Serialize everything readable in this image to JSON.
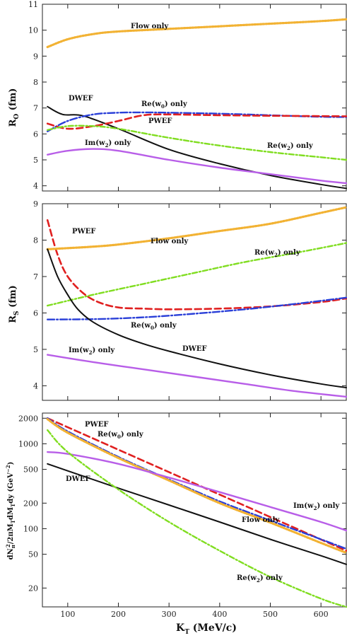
{
  "colors": {
    "flow": "#f2b233",
    "pwef": "#e02020",
    "re_w0": "#2a3fd8",
    "re_w2": "#80dd20",
    "im_w2": "#b85ee8",
    "dwef": "#111111"
  },
  "chart_data": [
    {
      "type": "line",
      "ylabel": "R_O (fm)",
      "xlim": [
        50,
        650
      ],
      "ylim": [
        3.8,
        11
      ],
      "yscale": "linear",
      "yticks": [
        4,
        5,
        6,
        7,
        8,
        9,
        10,
        11
      ],
      "series": [
        {
          "name": "Flow only",
          "style": "flow",
          "x": [
            60,
            100,
            150,
            200,
            300,
            400,
            500,
            600,
            650
          ],
          "y": [
            9.35,
            9.65,
            9.85,
            9.95,
            10.05,
            10.15,
            10.25,
            10.35,
            10.42
          ]
        },
        {
          "name": "DWEF",
          "style": "dwef",
          "x": [
            60,
            90,
            130,
            200,
            300,
            400,
            500,
            600,
            650
          ],
          "y": [
            7.05,
            6.75,
            6.7,
            6.2,
            5.4,
            4.85,
            4.4,
            4.05,
            3.9
          ]
        },
        {
          "name": "Re(w0) only",
          "style": "re_w0",
          "x": [
            60,
            100,
            150,
            200,
            250,
            300,
            400,
            500,
            600,
            650
          ],
          "y": [
            6.1,
            6.5,
            6.75,
            6.82,
            6.83,
            6.82,
            6.78,
            6.72,
            6.66,
            6.65
          ]
        },
        {
          "name": "PWEF",
          "style": "pwef",
          "x": [
            60,
            100,
            150,
            200,
            250,
            300,
            400,
            500,
            650
          ],
          "y": [
            6.4,
            6.2,
            6.3,
            6.5,
            6.72,
            6.75,
            6.72,
            6.7,
            6.68
          ]
        },
        {
          "name": "Re(w2) only",
          "style": "re_w2",
          "x": [
            60,
            100,
            150,
            200,
            300,
            400,
            500,
            600,
            650
          ],
          "y": [
            6.15,
            6.3,
            6.3,
            6.2,
            5.85,
            5.55,
            5.3,
            5.1,
            5.0
          ]
        },
        {
          "name": "Im(w2) only",
          "style": "im_w2",
          "x": [
            60,
            100,
            150,
            200,
            300,
            400,
            500,
            600,
            650
          ],
          "y": [
            5.2,
            5.35,
            5.42,
            5.35,
            5.0,
            4.7,
            4.45,
            4.2,
            4.1
          ]
        }
      ],
      "annotations": [
        "Flow only",
        "DWEF",
        "Re(w0) only",
        "PWEF",
        "Im(w2) only",
        "Re(w2) only"
      ]
    },
    {
      "type": "line",
      "ylabel": "R_S (fm)",
      "xlim": [
        50,
        650
      ],
      "ylim": [
        3.6,
        9
      ],
      "yscale": "linear",
      "yticks": [
        4,
        5,
        6,
        7,
        8,
        9
      ],
      "series": [
        {
          "name": "PWEF",
          "style": "pwef",
          "x": [
            60,
            80,
            100,
            130,
            160,
            200,
            250,
            300,
            400,
            500,
            600,
            650
          ],
          "y": [
            8.55,
            7.6,
            7.0,
            6.55,
            6.3,
            6.15,
            6.12,
            6.1,
            6.12,
            6.18,
            6.3,
            6.4
          ]
        },
        {
          "name": "Flow only",
          "style": "flow",
          "x": [
            60,
            100,
            150,
            200,
            300,
            400,
            500,
            600,
            650
          ],
          "y": [
            7.75,
            7.78,
            7.82,
            7.88,
            8.05,
            8.25,
            8.45,
            8.75,
            8.9
          ]
        },
        {
          "name": "Re(w2) only",
          "style": "re_w2",
          "x": [
            60,
            150,
            250,
            350,
            450,
            550,
            650
          ],
          "y": [
            6.2,
            6.5,
            6.8,
            7.1,
            7.4,
            7.65,
            7.92
          ]
        },
        {
          "name": "Re(w0) only",
          "style": "re_w0",
          "x": [
            60,
            150,
            250,
            350,
            450,
            550,
            650
          ],
          "y": [
            5.82,
            5.83,
            5.88,
            5.98,
            6.1,
            6.25,
            6.42
          ]
        },
        {
          "name": "DWEF",
          "style": "dwef",
          "x": [
            60,
            80,
            100,
            120,
            150,
            200,
            250,
            300,
            400,
            500,
            600,
            650
          ],
          "y": [
            7.75,
            7.0,
            6.5,
            6.1,
            5.75,
            5.4,
            5.15,
            4.95,
            4.6,
            4.3,
            4.05,
            3.95
          ]
        },
        {
          "name": "Im(w2) only",
          "style": "im_w2",
          "x": [
            60,
            150,
            250,
            350,
            450,
            550,
            650
          ],
          "y": [
            4.85,
            4.65,
            4.45,
            4.25,
            4.05,
            3.85,
            3.7
          ]
        }
      ],
      "annotations": [
        "PWEF",
        "Flow only",
        "Re(w2) only",
        "Re(w0) only",
        "DWEF",
        "Im(w2) only"
      ]
    },
    {
      "type": "line",
      "ylabel": "dN_π²/2πM_T dM_T dy (GeV⁻²)",
      "xlabel": "K_T (MeV/c)",
      "xlim": [
        50,
        650
      ],
      "ylim": [
        12,
        2300
      ],
      "yscale": "log",
      "yticks": [
        20,
        50,
        100,
        200,
        500,
        1000,
        2000
      ],
      "xticks": [
        100,
        200,
        300,
        400,
        500,
        600
      ],
      "series": [
        {
          "name": "PWEF",
          "style": "pwef",
          "x": [
            60,
            650
          ],
          "y": [
            2000,
            55
          ]
        },
        {
          "name": "Re(w0) only",
          "style": "re_w0",
          "x": [
            60,
            100,
            200,
            300,
            400,
            500,
            600,
            650
          ],
          "y": [
            2000,
            1400,
            700,
            380,
            210,
            125,
            75,
            58
          ]
        },
        {
          "name": "Flow only",
          "style": "flow",
          "x": [
            60,
            100,
            200,
            300,
            400,
            500,
            600,
            650
          ],
          "y": [
            1950,
            1350,
            680,
            370,
            200,
            118,
            68,
            52
          ]
        },
        {
          "name": "Im(w2) only",
          "style": "im_w2",
          "x": [
            60,
            100,
            200,
            300,
            400,
            500,
            600,
            650
          ],
          "y": [
            800,
            760,
            580,
            400,
            270,
            180,
            120,
            95
          ]
        },
        {
          "name": "DWEF",
          "style": "dwef",
          "x": [
            60,
            100,
            200,
            300,
            400,
            500,
            600,
            650
          ],
          "y": [
            580,
            480,
            300,
            190,
            120,
            75,
            48,
            38
          ]
        },
        {
          "name": "Re(w2) only",
          "style": "re_w2",
          "x": [
            60,
            100,
            200,
            300,
            400,
            500,
            600,
            650
          ],
          "y": [
            1450,
            800,
            290,
            120,
            55,
            27,
            15,
            12
          ]
        }
      ],
      "annotations": [
        "PWEF",
        "Re(w0) only",
        "DWEF",
        "Im(w2) only",
        "Flow only",
        "Re(w2) only"
      ]
    }
  ],
  "text": {
    "p1": {
      "ylabel_main": "R",
      "ylabel_sub": "O",
      "ylabel_unit": " (fm)",
      "flow": "Flow only",
      "dwef": "DWEF",
      "pwef": "PWEF",
      "rew0_a": "Re(w",
      "rew0_s": "0",
      "rew0_b": ") only",
      "rew2_a": "Re(w",
      "rew2_s": "2",
      "rew2_b": ") only",
      "imw2_a": "Im(w",
      "imw2_s": "2",
      "imw2_b": ") only"
    },
    "p2": {
      "ylabel_main": "R",
      "ylabel_sub": "S",
      "ylabel_unit": " (fm)",
      "flow": "Flow only",
      "dwef": "DWEF",
      "pwef": "PWEF",
      "rew0_a": "Re(w",
      "rew0_s": "0",
      "rew0_b": ") only",
      "rew2_a": "Re(w",
      "rew2_s": "2",
      "rew2_b": ") only",
      "imw2_a": "Im(w",
      "imw2_s": "2",
      "imw2_b": ") only"
    },
    "p3": {
      "ylabel": "dN",
      "ylabel_sub": "π",
      "ylabel_sup": "2",
      "ylabel_rest": "/2πM",
      "ylabel_t1": "T",
      "ylabel_mid": "dM",
      "ylabel_t2": "T",
      "ylabel_end": "dy (GeV",
      "ylabel_exp": "−2",
      "ylabel_close": ")",
      "flow": "Flow only",
      "dwef": "DWEF",
      "pwef": "PWEF",
      "rew0_a": "Re(w",
      "rew0_s": "0",
      "rew0_b": ") only",
      "rew2_a": "Re(w",
      "rew2_s": "2",
      "rew2_b": ") only",
      "imw2_a": "Im(w",
      "imw2_s": "2",
      "imw2_b": ") only"
    },
    "xlabel_main": "K",
    "xlabel_sub": "T",
    "xlabel_unit": " (MeV/c)"
  }
}
